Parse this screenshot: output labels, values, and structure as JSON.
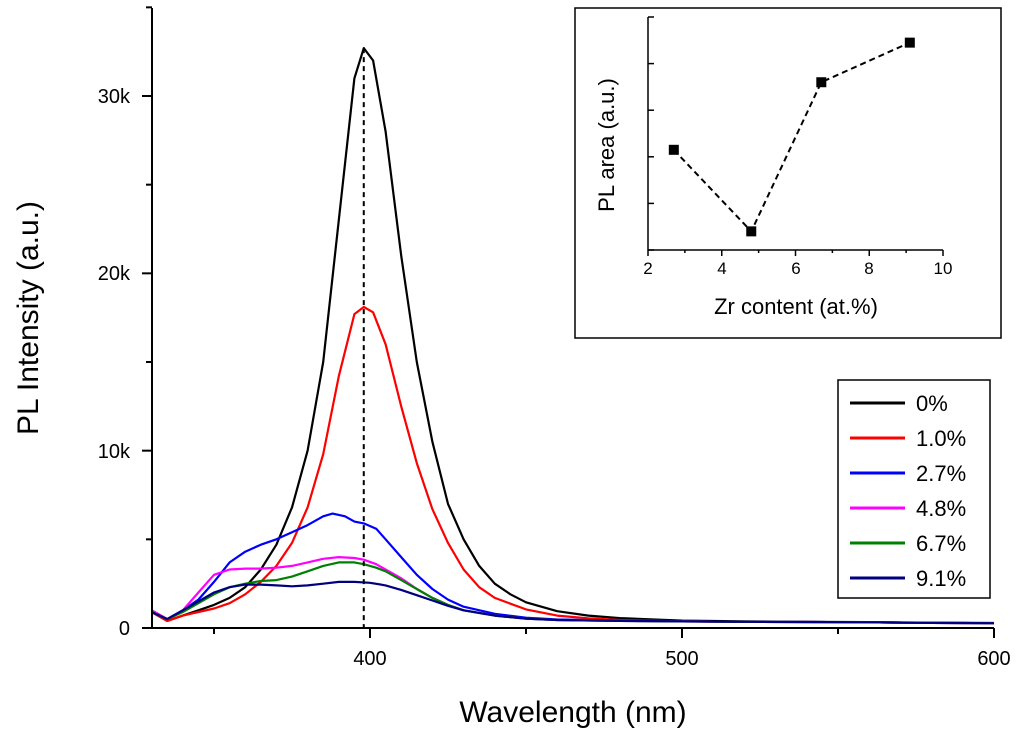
{
  "chart_data": [
    {
      "type": "line",
      "title": "",
      "xlabel": "Wavelength (nm)",
      "ylabel": "PL Intensity (a.u.)",
      "xlim": [
        330,
        600
      ],
      "ylim": [
        0,
        35000
      ],
      "xticks": [
        400,
        500,
        600
      ],
      "xtick_labels": [
        "400",
        "500",
        "600"
      ],
      "yticks": [
        0,
        10000,
        20000,
        30000
      ],
      "ytick_labels": [
        "0",
        "10k",
        "20k",
        "30k"
      ],
      "grid": false,
      "legend_position": "right",
      "reference_line": {
        "x": 398,
        "style": "dashed"
      },
      "series": [
        {
          "name": "0%",
          "color": "#000000",
          "points": [
            [
              330,
              900
            ],
            [
              335,
              400
            ],
            [
              340,
              700
            ],
            [
              345,
              1000
            ],
            [
              350,
              1300
            ],
            [
              355,
              1700
            ],
            [
              360,
              2300
            ],
            [
              365,
              3300
            ],
            [
              370,
              4700
            ],
            [
              375,
              6800
            ],
            [
              380,
              10000
            ],
            [
              385,
              15000
            ],
            [
              390,
              23000
            ],
            [
              395,
              31000
            ],
            [
              398,
              32700
            ],
            [
              401,
              32000
            ],
            [
              405,
              28000
            ],
            [
              410,
              21000
            ],
            [
              415,
              15000
            ],
            [
              420,
              10500
            ],
            [
              425,
              7000
            ],
            [
              430,
              5000
            ],
            [
              435,
              3500
            ],
            [
              440,
              2500
            ],
            [
              445,
              1900
            ],
            [
              450,
              1450
            ],
            [
              460,
              950
            ],
            [
              470,
              700
            ],
            [
              480,
              560
            ],
            [
              500,
              420
            ],
            [
              520,
              370
            ],
            [
              540,
              350
            ],
            [
              560,
              330
            ],
            [
              580,
              300
            ],
            [
              600,
              280
            ]
          ]
        },
        {
          "name": "1.0%",
          "color": "#ff0000",
          "points": [
            [
              330,
              900
            ],
            [
              335,
              400
            ],
            [
              340,
              700
            ],
            [
              345,
              900
            ],
            [
              350,
              1100
            ],
            [
              355,
              1400
            ],
            [
              360,
              1900
            ],
            [
              365,
              2600
            ],
            [
              370,
              3500
            ],
            [
              375,
              4800
            ],
            [
              380,
              6800
            ],
            [
              385,
              9800
            ],
            [
              390,
              14200
            ],
            [
              395,
              17700
            ],
            [
              398,
              18100
            ],
            [
              401,
              17800
            ],
            [
              405,
              16000
            ],
            [
              410,
              12500
            ],
            [
              415,
              9300
            ],
            [
              420,
              6700
            ],
            [
              425,
              4800
            ],
            [
              430,
              3300
            ],
            [
              435,
              2300
            ],
            [
              440,
              1700
            ],
            [
              450,
              1050
            ],
            [
              460,
              700
            ],
            [
              470,
              540
            ],
            [
              480,
              450
            ],
            [
              500,
              380
            ],
            [
              520,
              350
            ],
            [
              540,
              340
            ],
            [
              560,
              320
            ],
            [
              580,
              290
            ],
            [
              600,
              270
            ]
          ]
        },
        {
          "name": "2.7%",
          "color": "#0000ff",
          "points": [
            [
              330,
              1000
            ],
            [
              335,
              500
            ],
            [
              340,
              1000
            ],
            [
              345,
              1600
            ],
            [
              350,
              2600
            ],
            [
              355,
              3700
            ],
            [
              360,
              4300
            ],
            [
              365,
              4700
            ],
            [
              370,
              5000
            ],
            [
              375,
              5400
            ],
            [
              380,
              5800
            ],
            [
              385,
              6300
            ],
            [
              388,
              6450
            ],
            [
              392,
              6300
            ],
            [
              395,
              6000
            ],
            [
              398,
              5900
            ],
            [
              402,
              5600
            ],
            [
              405,
              5000
            ],
            [
              410,
              4000
            ],
            [
              415,
              3000
            ],
            [
              420,
              2200
            ],
            [
              425,
              1600
            ],
            [
              430,
              1200
            ],
            [
              440,
              800
            ],
            [
              450,
              580
            ],
            [
              460,
              480
            ],
            [
              480,
              420
            ],
            [
              500,
              380
            ],
            [
              520,
              350
            ],
            [
              540,
              340
            ],
            [
              560,
              320
            ],
            [
              580,
              290
            ],
            [
              600,
              270
            ]
          ]
        },
        {
          "name": "4.8%",
          "color": "#ff00ff",
          "points": [
            [
              330,
              1000
            ],
            [
              335,
              500
            ],
            [
              340,
              1000
            ],
            [
              345,
              2000
            ],
            [
              350,
              3000
            ],
            [
              355,
              3300
            ],
            [
              360,
              3350
            ],
            [
              365,
              3350
            ],
            [
              370,
              3400
            ],
            [
              375,
              3500
            ],
            [
              380,
              3700
            ],
            [
              385,
              3900
            ],
            [
              390,
              4000
            ],
            [
              395,
              3950
            ],
            [
              398,
              3850
            ],
            [
              402,
              3600
            ],
            [
              405,
              3300
            ],
            [
              410,
              2800
            ],
            [
              415,
              2200
            ],
            [
              420,
              1700
            ],
            [
              425,
              1300
            ],
            [
              430,
              1000
            ],
            [
              440,
              700
            ],
            [
              450,
              530
            ],
            [
              460,
              450
            ],
            [
              480,
              400
            ],
            [
              500,
              370
            ],
            [
              520,
              350
            ],
            [
              540,
              340
            ],
            [
              560,
              320
            ],
            [
              580,
              290
            ],
            [
              600,
              270
            ]
          ]
        },
        {
          "name": "6.7%",
          "color": "#008000",
          "points": [
            [
              330,
              900
            ],
            [
              335,
              500
            ],
            [
              340,
              900
            ],
            [
              345,
              1400
            ],
            [
              350,
              1900
            ],
            [
              355,
              2300
            ],
            [
              360,
              2500
            ],
            [
              365,
              2650
            ],
            [
              370,
              2700
            ],
            [
              375,
              2900
            ],
            [
              380,
              3200
            ],
            [
              385,
              3500
            ],
            [
              390,
              3700
            ],
            [
              395,
              3700
            ],
            [
              398,
              3600
            ],
            [
              402,
              3400
            ],
            [
              405,
              3200
            ],
            [
              410,
              2700
            ],
            [
              415,
              2200
            ],
            [
              420,
              1700
            ],
            [
              425,
              1300
            ],
            [
              430,
              1000
            ],
            [
              440,
              700
            ],
            [
              450,
              530
            ],
            [
              460,
              450
            ],
            [
              480,
              400
            ],
            [
              500,
              370
            ],
            [
              520,
              350
            ],
            [
              540,
              340
            ],
            [
              560,
              320
            ],
            [
              580,
              290
            ],
            [
              600,
              270
            ]
          ]
        },
        {
          "name": "9.1%",
          "color": "#000080",
          "points": [
            [
              330,
              900
            ],
            [
              335,
              500
            ],
            [
              340,
              1000
            ],
            [
              345,
              1500
            ],
            [
              350,
              2000
            ],
            [
              355,
              2300
            ],
            [
              360,
              2450
            ],
            [
              365,
              2450
            ],
            [
              370,
              2400
            ],
            [
              375,
              2350
            ],
            [
              380,
              2400
            ],
            [
              385,
              2500
            ],
            [
              390,
              2600
            ],
            [
              395,
              2600
            ],
            [
              400,
              2550
            ],
            [
              405,
              2400
            ],
            [
              410,
              2150
            ],
            [
              415,
              1850
            ],
            [
              420,
              1550
            ],
            [
              425,
              1250
            ],
            [
              430,
              1000
            ],
            [
              440,
              700
            ],
            [
              450,
              530
            ],
            [
              460,
              450
            ],
            [
              480,
              400
            ],
            [
              500,
              370
            ],
            [
              520,
              350
            ],
            [
              540,
              340
            ],
            [
              560,
              320
            ],
            [
              580,
              290
            ],
            [
              600,
              270
            ]
          ]
        }
      ]
    },
    {
      "type": "scatter",
      "title": "",
      "xlabel": "Zr content (at.%)",
      "ylabel": "PL area (a.u.)",
      "xlim": [
        2,
        10
      ],
      "ylim": [
        0,
        1
      ],
      "xticks": [
        2,
        4,
        6,
        8,
        10
      ],
      "xtick_labels": [
        "2",
        "4",
        "6",
        "8",
        "10"
      ],
      "y_tick_count": 5,
      "line_style": "dashed",
      "x": [
        2.7,
        4.8,
        6.7,
        9.1
      ],
      "y": [
        0.43,
        0.08,
        0.72,
        0.89
      ]
    }
  ]
}
